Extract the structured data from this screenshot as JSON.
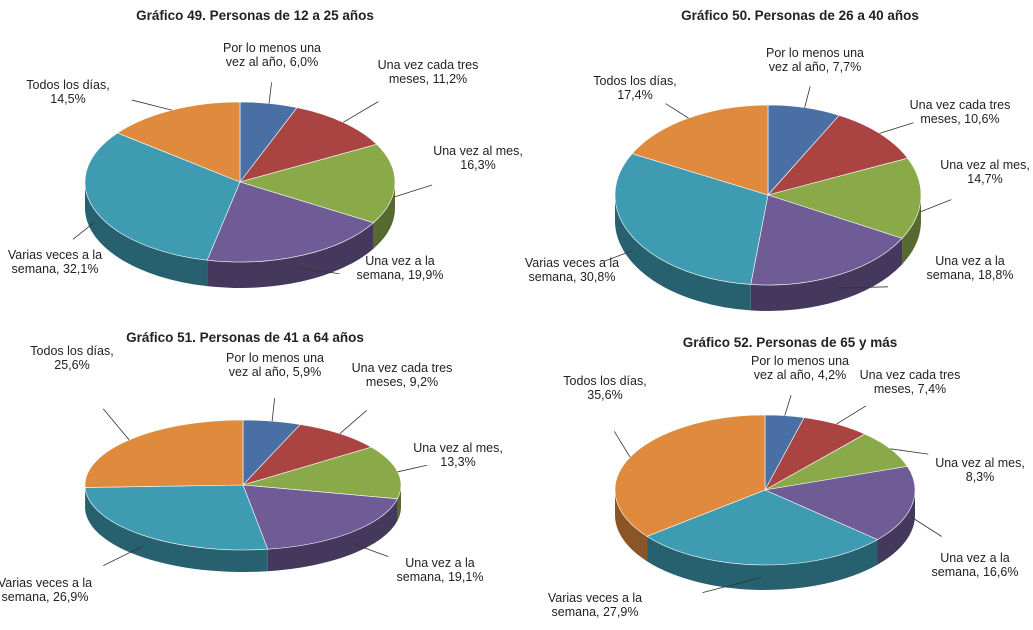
{
  "chart_data": [
    {
      "type": "pie",
      "title": "Gráfico 49. Personas de 12 a 25 años",
      "categories": [
        "Por lo menos una vez al año,",
        "Una vez cada tres meses,",
        "Una vez al mes,",
        "Una vez a la semana,",
        "Varias veces a la semana,",
        "Todos los días,"
      ],
      "values": [
        6.0,
        11.2,
        16.3,
        19.9,
        32.1,
        14.5
      ],
      "value_labels": [
        "6,0%",
        "11,2%",
        "16,3%",
        "19,9%",
        "32,1%",
        "14,5%"
      ],
      "colors": [
        "#4a6fa5",
        "#a94442",
        "#8aaa4a",
        "#6f5b96",
        "#3f9bb2",
        "#df8a3c"
      ]
    },
    {
      "type": "pie",
      "title": "Gráfico 50. Personas de 26 a 40 años",
      "categories": [
        "Por lo menos una vez al año,",
        "Una vez cada tres meses,",
        "Una vez al mes,",
        "Una vez a la semana,",
        "Varias veces a la semana,",
        "Todos los días,"
      ],
      "values": [
        7.7,
        10.6,
        14.7,
        18.8,
        30.8,
        17.4
      ],
      "value_labels": [
        "7,7%",
        "10,6%",
        "14,7%",
        "18,8%",
        "30,8%",
        "17,4%"
      ],
      "colors": [
        "#4a6fa5",
        "#a94442",
        "#8aaa4a",
        "#6f5b96",
        "#3f9bb2",
        "#df8a3c"
      ]
    },
    {
      "type": "pie",
      "title": "Gráfico 51. Personas de 41 a 64 años",
      "categories": [
        "Por lo menos una vez al año,",
        "Una vez cada tres meses,",
        "Una vez al mes,",
        "Una vez a la semana,",
        "Varias veces a la semana,",
        "Todos los días,"
      ],
      "values": [
        5.9,
        9.2,
        13.3,
        19.1,
        26.9,
        25.6
      ],
      "value_labels": [
        "5,9%",
        "9,2%",
        "13,3%",
        "19,1%",
        "26,9%",
        "25,6%"
      ],
      "colors": [
        "#4a6fa5",
        "#a94442",
        "#8aaa4a",
        "#6f5b96",
        "#3f9bb2",
        "#df8a3c"
      ]
    },
    {
      "type": "pie",
      "title": "Gráfico 52. Personas de 65 y más",
      "categories": [
        "Por lo menos una vez al año,",
        "Una vez cada tres meses,",
        "Una vez al mes,",
        "Una vez a la semana,",
        "Varias veces a la semana,",
        "Todos los días,"
      ],
      "values": [
        4.2,
        7.4,
        8.3,
        16.6,
        27.9,
        35.6
      ],
      "value_labels": [
        "4,2%",
        "7,4%",
        "8,3%",
        "16,6%",
        "27,9%",
        "35,6%"
      ],
      "colors": [
        "#4a6fa5",
        "#a94442",
        "#8aaa4a",
        "#6f5b96",
        "#3f9bb2",
        "#df8a3c"
      ]
    }
  ]
}
